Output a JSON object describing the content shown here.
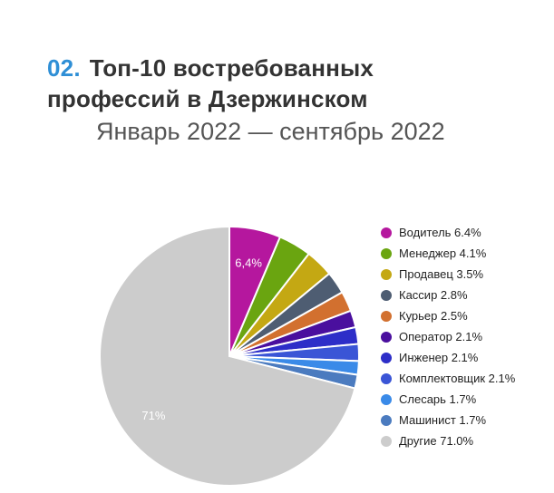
{
  "header": {
    "number": "02.",
    "title_line1": "Топ-10 востребованных",
    "title_line2": "профессий в Дзержинском",
    "subtitle": "Январь 2022 — сентябрь 2022"
  },
  "chart_data": {
    "type": "pie",
    "title": "Топ-10 востребованных профессий в Дзержинском",
    "subtitle": "Январь 2022 — сентябрь 2022",
    "legend_position": "right",
    "start_angle": "top",
    "direction": "clockwise",
    "slices": [
      {
        "label": "Водитель",
        "value": 6.4,
        "legend_text": "Водитель 6.4%",
        "slice_label": "6,4%",
        "color": "#b5179e"
      },
      {
        "label": "Менеджер",
        "value": 4.1,
        "legend_text": "Менеджер 4.1%",
        "slice_label": "",
        "color": "#6aa510"
      },
      {
        "label": "Продавец",
        "value": 3.5,
        "legend_text": "Продавец 3.5%",
        "slice_label": "",
        "color": "#c4a813"
      },
      {
        "label": "Кассир",
        "value": 2.8,
        "legend_text": "Кассир 2.8%",
        "slice_label": "",
        "color": "#4e5d72"
      },
      {
        "label": "Курьер",
        "value": 2.5,
        "legend_text": "Курьер 2.5%",
        "slice_label": "",
        "color": "#d2702f"
      },
      {
        "label": "Оператор",
        "value": 2.1,
        "legend_text": "Оператор 2.1%",
        "slice_label": "",
        "color": "#4a0f9e"
      },
      {
        "label": "Инженер",
        "value": 2.1,
        "legend_text": "Инженер 2.1%",
        "slice_label": "",
        "color": "#2d2ec8"
      },
      {
        "label": "Комплектовщик",
        "value": 2.1,
        "legend_text": "Комплектовщик 2.1%",
        "slice_label": "",
        "color": "#3a55d6"
      },
      {
        "label": "Слесарь",
        "value": 1.7,
        "legend_text": "Слесарь 1.7%",
        "slice_label": "",
        "color": "#3a8ae8"
      },
      {
        "label": "Машинист",
        "value": 1.7,
        "legend_text": "Машинист 1.7%",
        "slice_label": "",
        "color": "#4b7bbf"
      },
      {
        "label": "Другие",
        "value": 71.0,
        "legend_text": "Другие 71.0%",
        "slice_label": "71%",
        "color": "#cccccc"
      }
    ]
  }
}
